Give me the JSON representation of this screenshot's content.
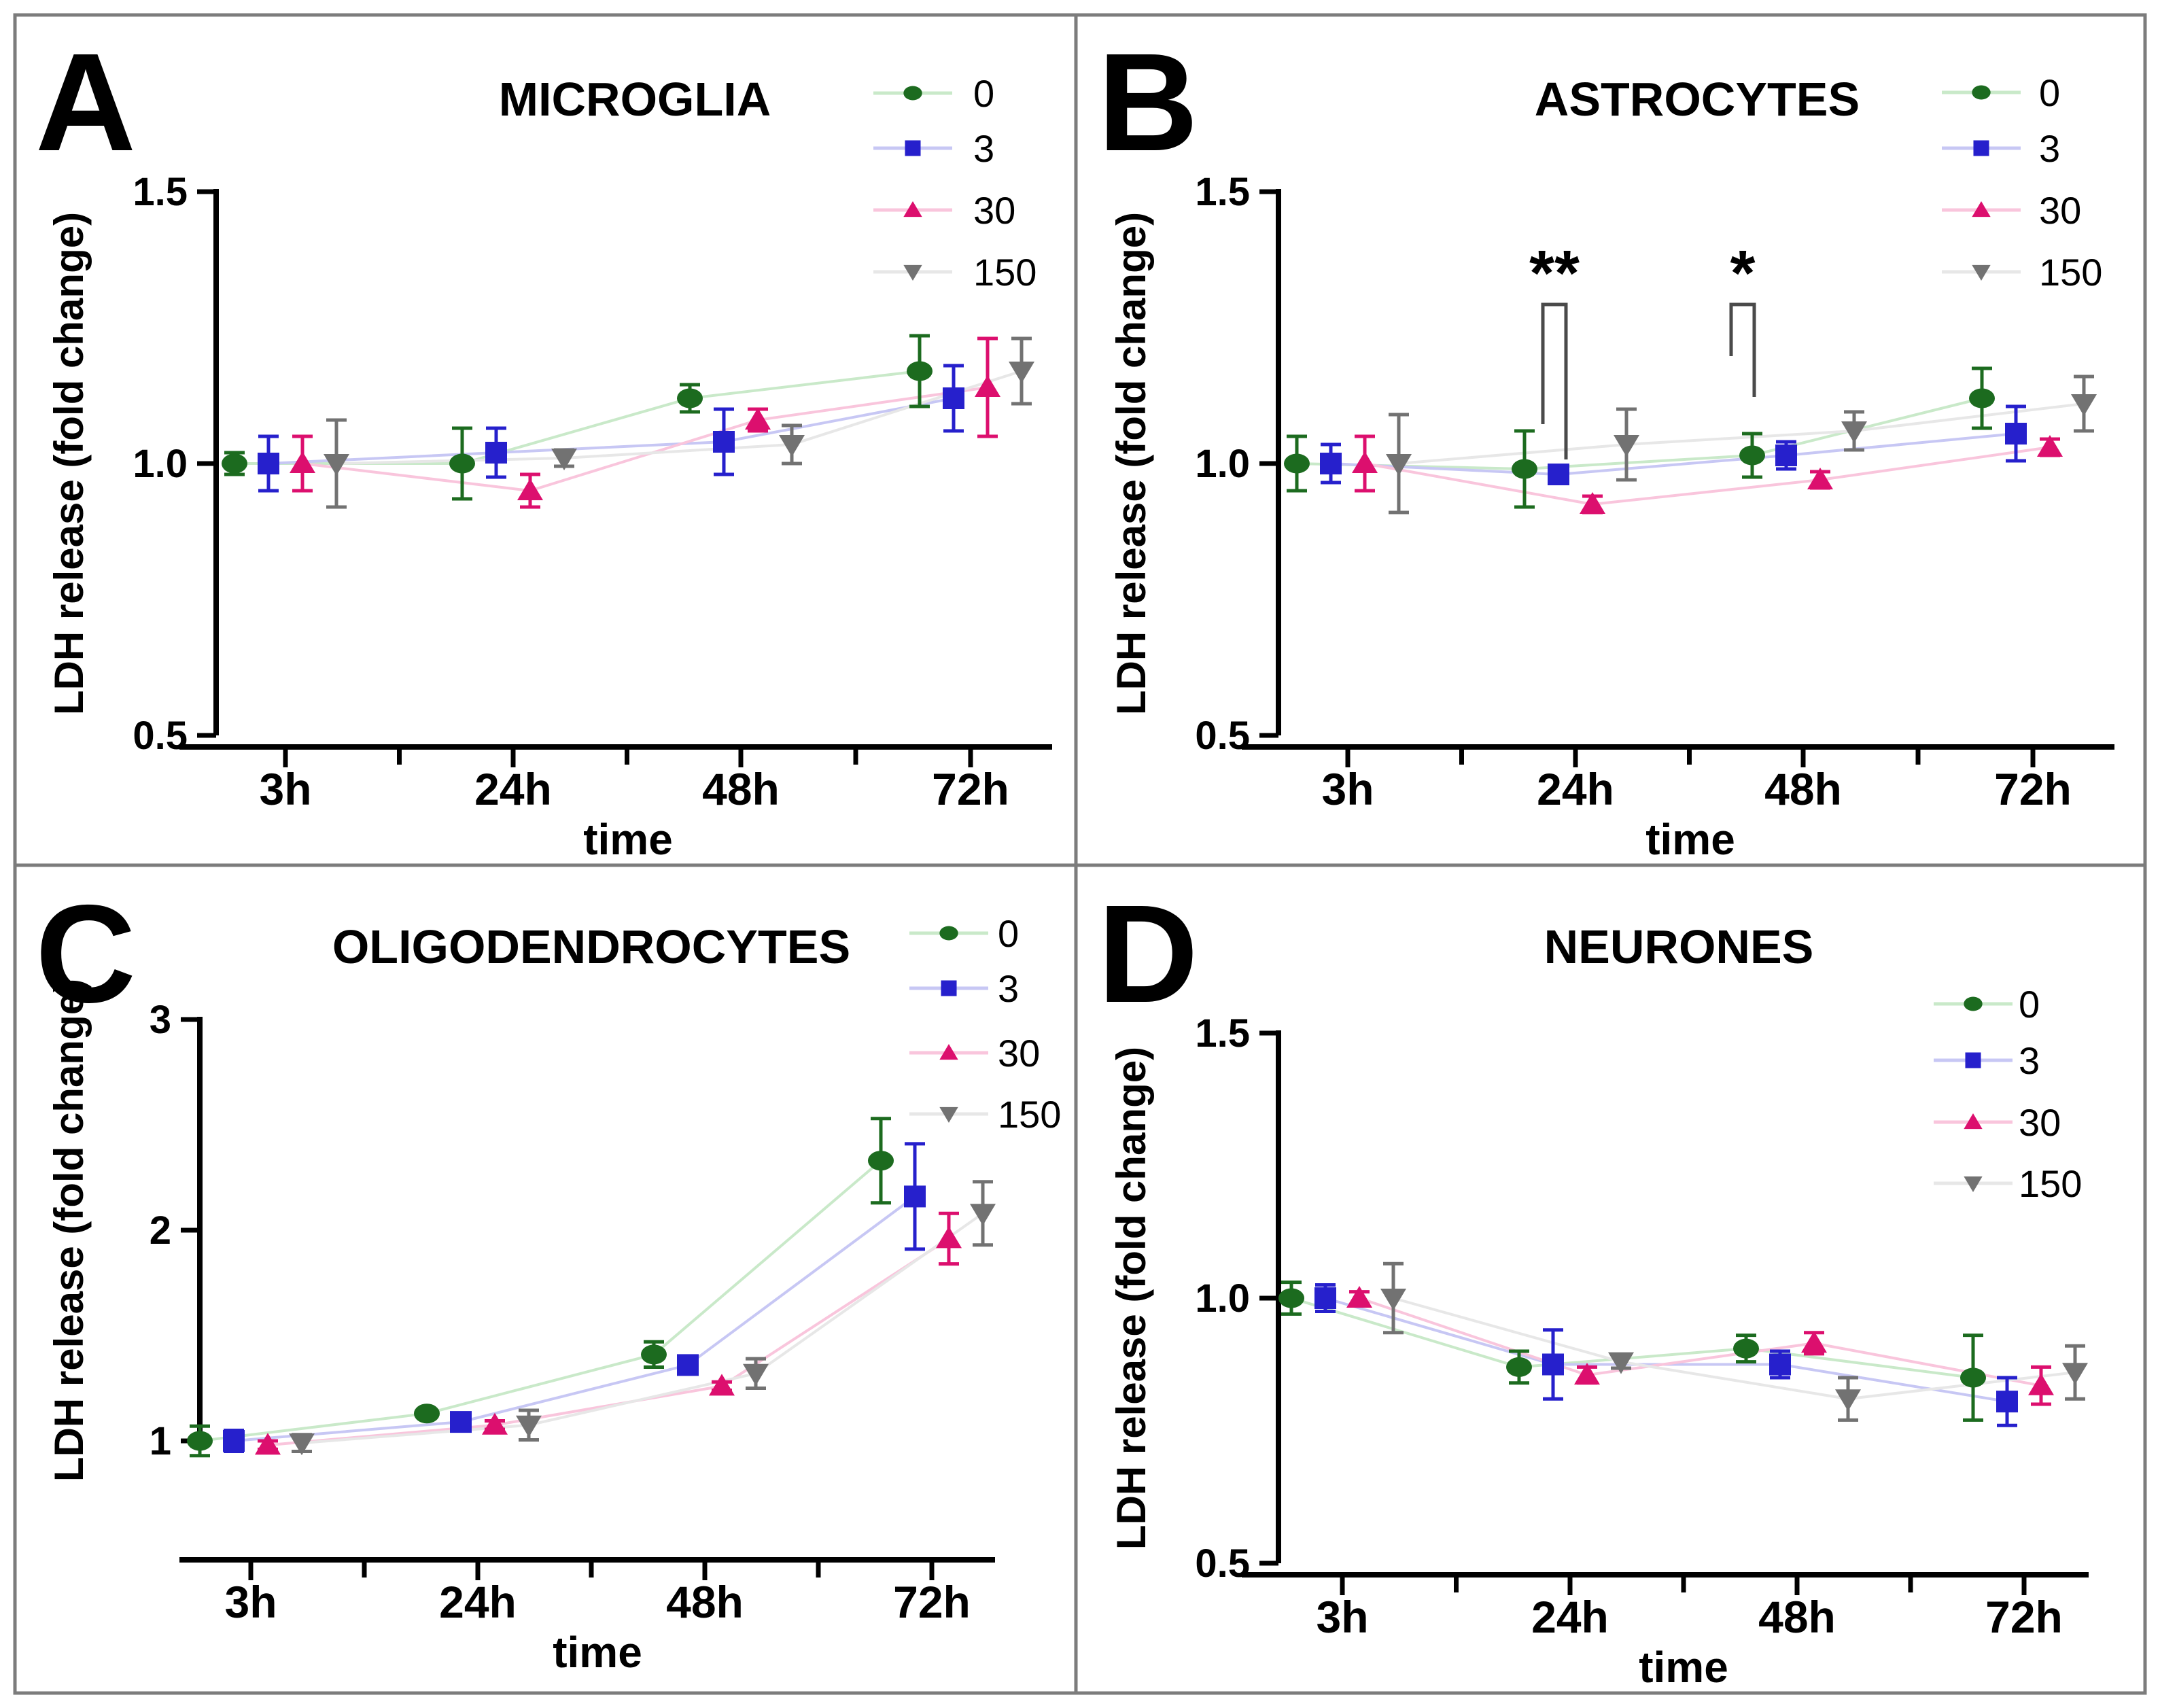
{
  "figure": {
    "background": "#ffffff",
    "outer_border_color": "#7c7c7c",
    "divider_color": "#7c7c7c",
    "annotation_color": "#4a4a4a"
  },
  "series_styles": [
    {
      "label": "0",
      "marker": "circle",
      "color": "#1c6b1f",
      "line_color": "#c9e9c9"
    },
    {
      "label": "3",
      "marker": "square",
      "color": "#2620cc",
      "line_color": "#c7c7f4"
    },
    {
      "label": "30",
      "marker": "triangle-up",
      "color": "#dc0f6e",
      "line_color": "#f9c5dc"
    },
    {
      "label": "150",
      "marker": "triangle-down",
      "color": "#727272",
      "line_color": "#e7e7e7"
    }
  ],
  "chart_data": [
    {
      "panel_letter": "A",
      "type": "line",
      "title": "MICROGLIA",
      "xlabel": "time",
      "ylabel": "LDH release (fold change)",
      "categories": [
        "3h",
        "24h",
        "48h",
        "72h"
      ],
      "ylim": [
        0.5,
        1.5
      ],
      "yticks": [
        0.5,
        1.0,
        1.5
      ],
      "ytick_labels": [
        "0.5",
        "1.0",
        "1.5"
      ],
      "grid": false,
      "legend_position": "top-right",
      "legend": [
        "0",
        "3",
        "30",
        "150"
      ],
      "series": [
        {
          "name": "0",
          "values": [
            1.0,
            1.0,
            1.12,
            1.17
          ],
          "errors": [
            0.02,
            0.065,
            0.025,
            0.065
          ]
        },
        {
          "name": "3",
          "values": [
            1.0,
            1.02,
            1.04,
            1.12
          ],
          "errors": [
            0.05,
            0.045,
            0.06,
            0.06
          ]
        },
        {
          "name": "30",
          "values": [
            1.0,
            0.95,
            1.08,
            1.14
          ],
          "errors": [
            0.05,
            0.03,
            0.02,
            0.09
          ]
        },
        {
          "name": "150",
          "values": [
            1.0,
            1.01,
            1.035,
            1.17
          ],
          "errors": [
            0.08,
            0.015,
            0.035,
            0.06
          ]
        }
      ],
      "annotations": []
    },
    {
      "panel_letter": "B",
      "type": "line",
      "title": "ASTROCYTES",
      "xlabel": "time",
      "ylabel": "LDH release (fold change)",
      "categories": [
        "3h",
        "24h",
        "48h",
        "72h"
      ],
      "ylim": [
        0.5,
        1.5
      ],
      "yticks": [
        0.5,
        1.0,
        1.5
      ],
      "ytick_labels": [
        "0.5",
        "1.0",
        "1.5"
      ],
      "grid": false,
      "legend_position": "top-right",
      "legend": [
        "0",
        "3",
        "30",
        "150"
      ],
      "series": [
        {
          "name": "0",
          "values": [
            1.0,
            0.99,
            1.015,
            1.12
          ],
          "errors": [
            0.05,
            0.07,
            0.04,
            0.055
          ]
        },
        {
          "name": "3",
          "values": [
            1.0,
            0.98,
            1.015,
            1.055
          ],
          "errors": [
            0.035,
            0.015,
            0.025,
            0.05
          ]
        },
        {
          "name": "30",
          "values": [
            1.0,
            0.925,
            0.97,
            1.03
          ],
          "errors": [
            0.05,
            0.015,
            0.015,
            0.015
          ]
        },
        {
          "name": "150",
          "values": [
            1.0,
            1.035,
            1.06,
            1.11
          ],
          "errors": [
            0.09,
            0.065,
            0.035,
            0.05
          ]
        }
      ],
      "annotations": [
        {
          "text": "**",
          "category": "24h"
        },
        {
          "text": "*",
          "category": "48h"
        }
      ]
    },
    {
      "panel_letter": "C",
      "type": "line",
      "title": "OLIGODENDROCYTES",
      "xlabel": "time",
      "ylabel": "LDH release (fold change)",
      "categories": [
        "3h",
        "24h",
        "48h",
        "72h"
      ],
      "ylim": [
        0.5,
        3.0
      ],
      "yticks": [
        1,
        2,
        3
      ],
      "ytick_labels": [
        "1",
        "2",
        "3"
      ],
      "grid": false,
      "legend_position": "top-right",
      "legend": [
        "0",
        "3",
        "30",
        "150"
      ],
      "series": [
        {
          "name": "0",
          "values": [
            1.0,
            1.13,
            1.41,
            2.33
          ],
          "errors": [
            0.07,
            0.02,
            0.06,
            0.2
          ]
        },
        {
          "name": "3",
          "values": [
            1.0,
            1.09,
            1.36,
            2.16
          ],
          "errors": [
            0.05,
            0.02,
            0.02,
            0.25
          ]
        },
        {
          "name": "30",
          "values": [
            0.98,
            1.075,
            1.26,
            1.96
          ],
          "errors": [
            0.02,
            0.02,
            0.02,
            0.12
          ]
        },
        {
          "name": "150",
          "values": [
            0.99,
            1.075,
            1.32,
            2.08
          ],
          "errors": [
            0.04,
            0.07,
            0.07,
            0.15
          ]
        }
      ],
      "annotations": []
    },
    {
      "panel_letter": "D",
      "type": "line",
      "title": "NEURONES",
      "xlabel": "time",
      "ylabel": "LDH release (fold change)",
      "categories": [
        "3h",
        "24h",
        "48h",
        "72h"
      ],
      "ylim": [
        0.5,
        1.5
      ],
      "yticks": [
        0.5,
        1.0,
        1.5
      ],
      "ytick_labels": [
        "0.5",
        "1.0",
        "1.5"
      ],
      "grid": false,
      "legend_position": "top-right",
      "legend": [
        "0",
        "3",
        "30",
        "150"
      ],
      "series": [
        {
          "name": "0",
          "values": [
            1.0,
            0.87,
            0.905,
            0.85
          ],
          "errors": [
            0.03,
            0.03,
            0.025,
            0.08
          ]
        },
        {
          "name": "3",
          "values": [
            1.0,
            0.875,
            0.875,
            0.805
          ],
          "errors": [
            0.025,
            0.065,
            0.025,
            0.045
          ]
        },
        {
          "name": "30",
          "values": [
            1.0,
            0.855,
            0.915,
            0.835
          ],
          "errors": [
            0.012,
            0.015,
            0.02,
            0.035
          ]
        },
        {
          "name": "150",
          "values": [
            1.0,
            0.88,
            0.81,
            0.86
          ],
          "errors": [
            0.065,
            0.012,
            0.04,
            0.05
          ]
        }
      ],
      "annotations": []
    }
  ]
}
